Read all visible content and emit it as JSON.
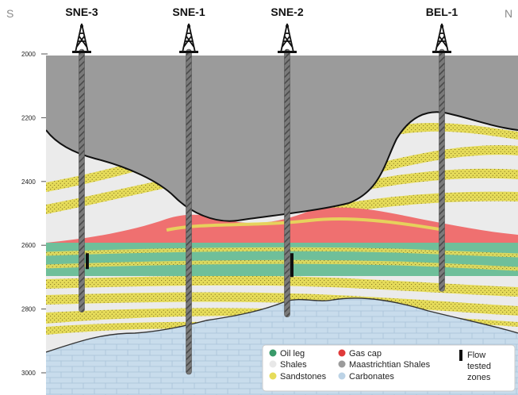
{
  "directions": {
    "left": "S",
    "right": "N"
  },
  "wells": [
    {
      "name": "SNE-3",
      "td": 2810
    },
    {
      "name": "SNE-1",
      "td": 3005
    },
    {
      "name": "SNE-2",
      "td": 2825
    },
    {
      "name": "BEL-1",
      "td": 2745
    }
  ],
  "depth_axis": {
    "ticks": [
      "2000",
      "2200",
      "2400",
      "2600",
      "2800",
      "3000"
    ]
  },
  "legend": {
    "items": [
      {
        "label": "Oil leg",
        "color": "#3a9a6a",
        "marker": "dot"
      },
      {
        "label": "Gas cap",
        "color": "#e03a3a",
        "marker": "dot"
      },
      {
        "label": "Shales",
        "color": "#e8e8e8",
        "marker": "dot"
      },
      {
        "label": "Maastrichtian Shales",
        "color": "#9b9b9b",
        "marker": "dot"
      },
      {
        "label": "Sandstones",
        "color": "#e6dc5a",
        "marker": "dot"
      },
      {
        "label": "Carbonates",
        "color": "#bcd3e6",
        "marker": "dot"
      }
    ],
    "flow_tested": {
      "line1": "Flow",
      "line2": "tested",
      "line3": "zones"
    }
  },
  "colors": {
    "maastrichtian": "#9b9b9b",
    "shale": "#e8e8e8",
    "sandstone": "#e6dc5a",
    "gas": "#ef7070",
    "oil": "#6fbf9a",
    "carbonate": "#c8dcec",
    "casing": "#6e6e6e"
  }
}
